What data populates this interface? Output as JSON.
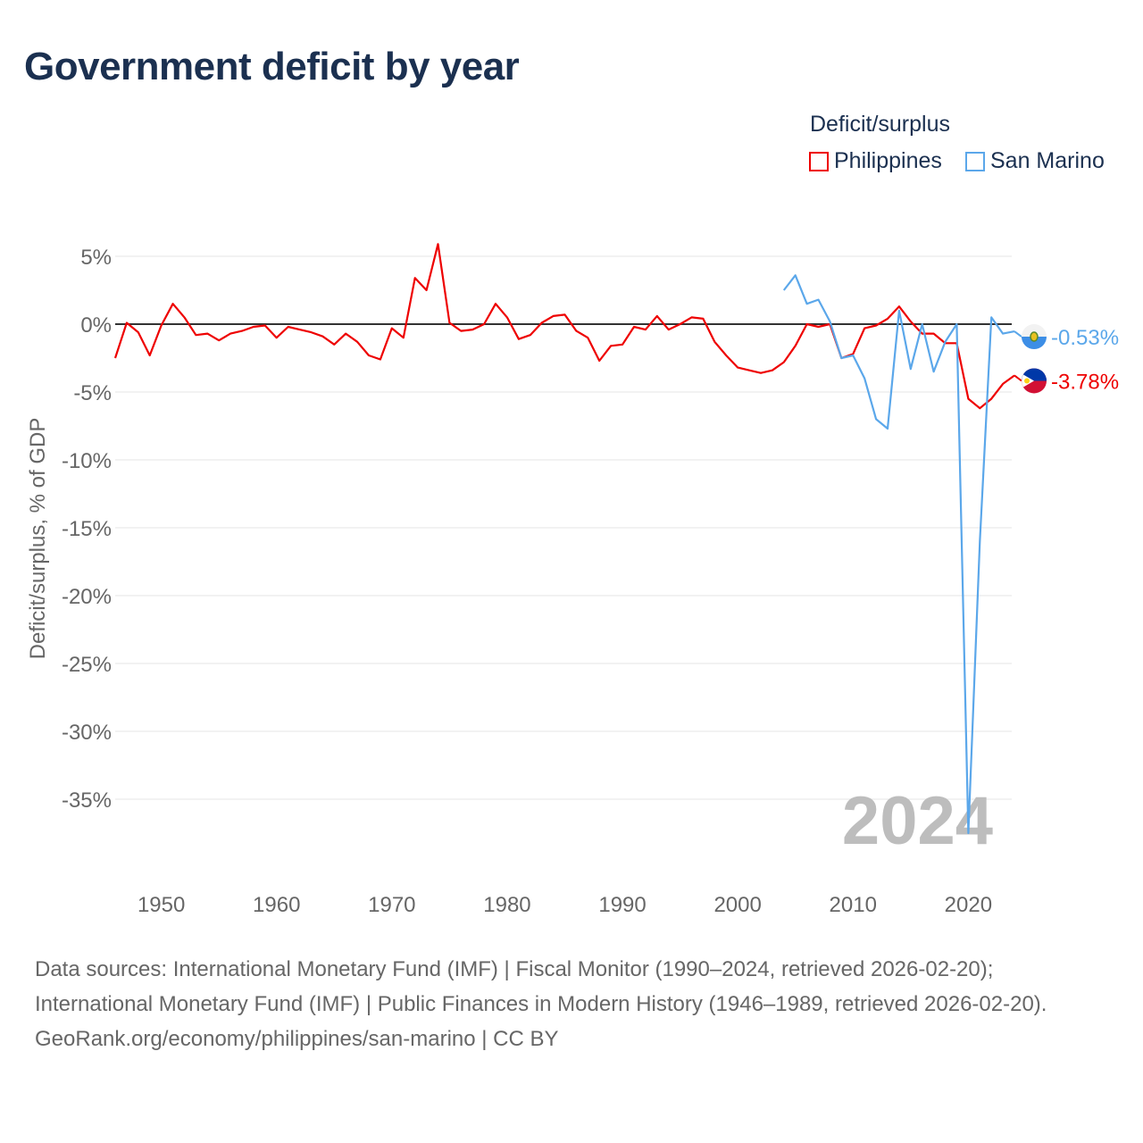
{
  "title": "Government deficit by year",
  "legend": {
    "title": "Deficit/surplus",
    "items": [
      {
        "name": "Philippines",
        "color": "#ee0000"
      },
      {
        "name": "San Marino",
        "color": "#5ba7ea"
      }
    ]
  },
  "year_watermark": "2024",
  "footer": {
    "sources": "Data sources: International Monetary Fund (IMF) | Fiscal Monitor (1990–2024, retrieved 2026-02-20); International Monetary Fund (IMF) | Public Finances in Modern History (1946–1989, retrieved 2026-02-20).",
    "credit": "GeoRank.org/economy/philippines/san-marino | CC BY"
  },
  "chart_data": {
    "type": "line",
    "title": "Government deficit by year",
    "xlabel": "",
    "ylabel": "Deficit/surplus, % of GDP",
    "xlim": [
      1946,
      2024
    ],
    "ylim": [
      -38.5,
      6
    ],
    "xticks": [
      1950,
      1960,
      1970,
      1980,
      1990,
      2000,
      2010,
      2020
    ],
    "yticks": [
      5,
      0,
      -5,
      -10,
      -15,
      -20,
      -25,
      -30,
      -35
    ],
    "ytick_labels": [
      "5%",
      "0%",
      "-5%",
      "-10%",
      "-15%",
      "-20%",
      "-25%",
      "-30%",
      "-35%"
    ],
    "grid": true,
    "legend_position": "top-right",
    "series": [
      {
        "name": "Philippines",
        "color": "#ee0000",
        "end_label": "-3.78%",
        "start": 1946,
        "values": [
          -2.5,
          0.1,
          -0.6,
          -2.3,
          -0.1,
          1.5,
          0.5,
          -0.8,
          -0.7,
          -1.2,
          -0.7,
          -0.5,
          -0.2,
          -0.1,
          -1.0,
          -0.2,
          -0.4,
          -0.6,
          -0.9,
          -1.5,
          -0.7,
          -1.3,
          -2.3,
          -2.6,
          -0.3,
          -1.0,
          3.4,
          2.5,
          5.9,
          0.1,
          -0.5,
          -0.4,
          0.0,
          1.5,
          0.5,
          -1.1,
          -0.8,
          0.1,
          0.6,
          0.7,
          -0.5,
          -1.0,
          -2.7,
          -1.6,
          -1.5,
          -0.2,
          -0.4,
          0.6,
          -0.4,
          0.0,
          0.5,
          0.4,
          -1.3,
          -2.3,
          -3.2,
          -3.4,
          -3.6,
          -3.4,
          -2.8,
          -1.6,
          0.0,
          -0.2,
          0.0,
          -2.5,
          -2.2,
          -0.3,
          -0.1,
          0.4,
          1.3,
          0.2,
          -0.7,
          -0.7,
          -1.4,
          -1.4,
          -5.5,
          -6.2,
          -5.5,
          -4.4,
          -3.78
        ]
      },
      {
        "name": "San Marino",
        "color": "#5ba7ea",
        "end_label": "-0.53%",
        "start": 2004,
        "values": [
          2.5,
          3.6,
          1.5,
          1.8,
          0.2,
          -2.5,
          -2.3,
          -4.0,
          -7.0,
          -7.7,
          1.0,
          -3.3,
          0.0,
          -3.5,
          -1.3,
          0.0,
          -37.5,
          -16.0,
          0.5,
          -0.7,
          -0.53
        ]
      }
    ]
  }
}
